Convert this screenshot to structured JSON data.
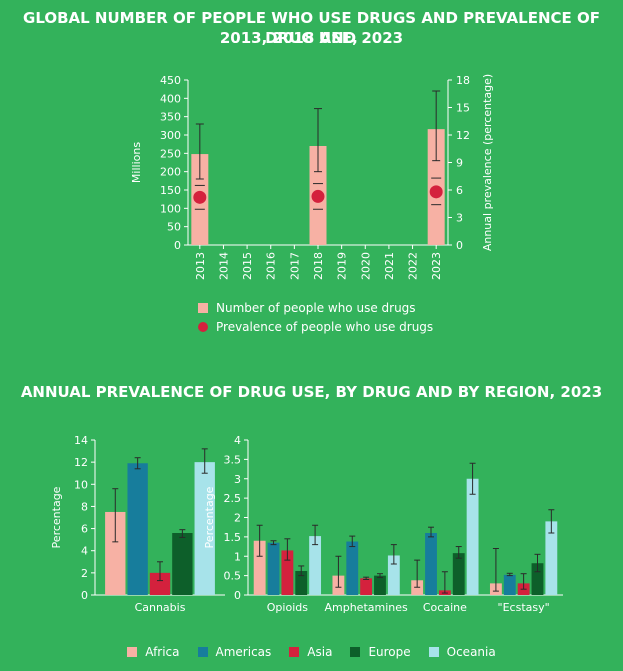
{
  "titles": {
    "top_line1": "GLOBAL NUMBER OF PEOPLE WHO USE DRUGS AND PREVALENCE OF DRUG USE,",
    "top_line2": "2013, 2018 AND 2023",
    "bottom": "ANNUAL PREVALENCE OF DRUG USE, BY DRUG AND BY REGION, 2023"
  },
  "colors": {
    "background": "#33b25b",
    "people_bar": "#f7b1a4",
    "prevalence_dot": "#d4213d",
    "Africa": "#f7b1a4",
    "Americas": "#177d9c",
    "Asia": "#d4213d",
    "Europe": "#0d5f2a",
    "Oceania": "#a7e3ea",
    "errorbar": "#2a2a2a"
  },
  "chart_data": [
    {
      "type": "bar",
      "years": [
        "2013",
        "2014",
        "2015",
        "2016",
        "2017",
        "2018",
        "2019",
        "2020",
        "2021",
        "2022",
        "2023"
      ],
      "people_millions": {
        "2013": 248,
        "2018": 270,
        "2023": 316
      },
      "people_error": {
        "2013": [
          180,
          330
        ],
        "2018": [
          200,
          372
        ],
        "2023": [
          230,
          420
        ]
      },
      "prevalence_pct": {
        "2013": 5.2,
        "2018": 5.3,
        "2023": 5.8
      },
      "prevalence_error": {
        "2013": [
          3.9,
          6.5
        ],
        "2018": [
          3.9,
          6.7
        ],
        "2023": [
          4.4,
          7.3
        ]
      },
      "y_left": {
        "label": "Millions",
        "ticks": [
          "0",
          "50",
          "100",
          "150",
          "200",
          "250",
          "300",
          "350",
          "400",
          "450"
        ],
        "lim": [
          0,
          450
        ]
      },
      "y_right": {
        "label": "Annual prevalence (percentage)",
        "ticks": [
          "0",
          "3",
          "6",
          "9",
          "12",
          "15",
          "18"
        ],
        "lim": [
          0,
          18
        ]
      },
      "legend": [
        "Number of people who use drugs",
        "Prevalence of people who use drugs"
      ]
    },
    {
      "type": "bar",
      "categories": [
        "Cannabis"
      ],
      "series": [
        {
          "name": "Africa",
          "values": [
            7.5
          ],
          "err": [
            [
              4.8,
              9.6
            ]
          ]
        },
        {
          "name": "Americas",
          "values": [
            11.9
          ],
          "err": [
            [
              11.4,
              12.4
            ]
          ]
        },
        {
          "name": "Asia",
          "values": [
            2.0
          ],
          "err": [
            [
              1.3,
              3.0
            ]
          ]
        },
        {
          "name": "Europe",
          "values": [
            5.6
          ],
          "err": [
            [
              5.2,
              5.9
            ]
          ]
        },
        {
          "name": "Oceania",
          "values": [
            12.0
          ],
          "err": [
            [
              11.0,
              13.2
            ]
          ]
        }
      ],
      "ylabel": "Percentage",
      "ticks": [
        "0",
        "2",
        "4",
        "6",
        "8",
        "10",
        "12",
        "14"
      ],
      "ylim": [
        0,
        14
      ]
    },
    {
      "type": "bar",
      "categories": [
        "Opioids",
        "Amphetamines",
        "Cocaine",
        "\"Ecstasy\""
      ],
      "series": [
        {
          "name": "Africa",
          "values": [
            1.4,
            0.5,
            0.38,
            0.3
          ],
          "err": [
            [
              1.0,
              1.8
            ],
            [
              0.2,
              1.0
            ],
            [
              0.2,
              0.9
            ],
            [
              0.1,
              1.2
            ]
          ]
        },
        {
          "name": "Americas",
          "values": [
            1.35,
            1.38,
            1.6,
            0.52
          ],
          "err": [
            [
              1.3,
              1.4
            ],
            [
              1.25,
              1.52
            ],
            [
              1.5,
              1.75
            ],
            [
              0.5,
              0.56
            ]
          ]
        },
        {
          "name": "Asia",
          "values": [
            1.15,
            0.43,
            0.12,
            0.3
          ],
          "err": [
            [
              0.9,
              1.45
            ],
            [
              0.4,
              0.46
            ],
            [
              0.05,
              0.6
            ],
            [
              0.15,
              0.55
            ]
          ]
        },
        {
          "name": "Europe",
          "values": [
            0.62,
            0.5,
            1.08,
            0.82
          ],
          "err": [
            [
              0.5,
              0.75
            ],
            [
              0.45,
              0.55
            ],
            [
              0.95,
              1.25
            ],
            [
              0.6,
              1.05
            ]
          ]
        },
        {
          "name": "Oceania",
          "values": [
            1.52,
            1.02,
            3.0,
            1.9
          ],
          "err": [
            [
              1.3,
              1.8
            ],
            [
              0.8,
              1.3
            ],
            [
              2.6,
              3.4
            ],
            [
              1.6,
              2.2
            ]
          ]
        }
      ],
      "ylabel": "Percentage",
      "ticks": [
        "0",
        "0.5",
        "1",
        "1.5",
        "2",
        "2.5",
        "3",
        "3.5",
        "4"
      ],
      "ylim": [
        0,
        4
      ]
    }
  ],
  "legend_regions": [
    "Africa",
    "Americas",
    "Asia",
    "Europe",
    "Oceania"
  ]
}
